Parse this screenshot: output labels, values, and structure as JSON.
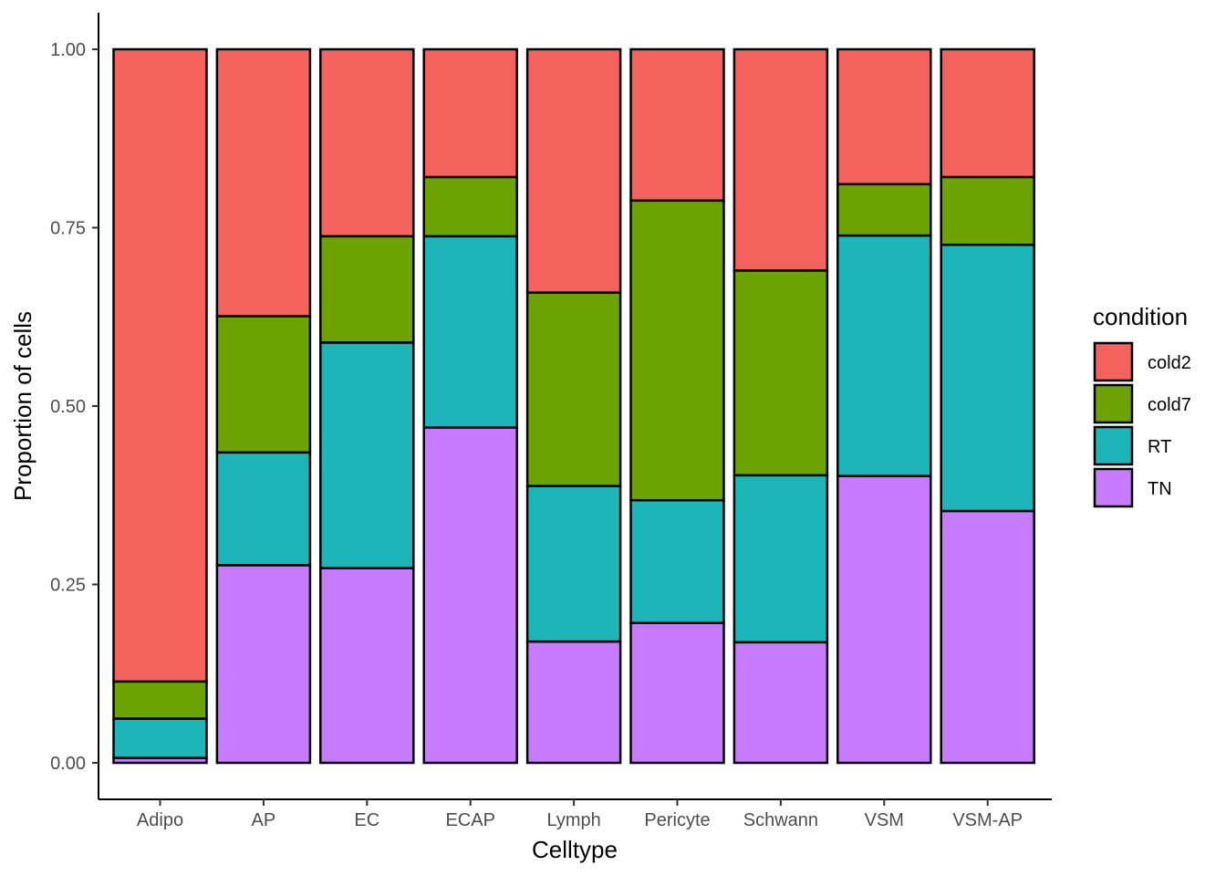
{
  "chart_data": {
    "type": "bar",
    "stacked": true,
    "xlabel": "Celltype",
    "ylabel": "Proportion of cells",
    "ylim": [
      0,
      1
    ],
    "yticks": [
      "0.00",
      "0.25",
      "0.50",
      "0.75",
      "1.00"
    ],
    "categories": [
      "Adipo",
      "AP",
      "EC",
      "ECAP",
      "Lymph",
      "Pericyte",
      "Schwann",
      "VSM",
      "VSM-AP"
    ],
    "series": [
      {
        "name": "TN",
        "color": "#C77CFF",
        "values": [
          0.007,
          0.277,
          0.273,
          0.47,
          0.17,
          0.196,
          0.169,
          0.402,
          0.353
        ]
      },
      {
        "name": "RT",
        "color": "#1DB6B8",
        "values": [
          0.055,
          0.158,
          0.316,
          0.268,
          0.218,
          0.172,
          0.234,
          0.337,
          0.373
        ]
      },
      {
        "name": "cold7",
        "color": "#6DA300",
        "values": [
          0.052,
          0.191,
          0.149,
          0.083,
          0.271,
          0.42,
          0.287,
          0.072,
          0.095
        ]
      },
      {
        "name": "cold2",
        "color": "#F3625D",
        "values": [
          0.886,
          0.374,
          0.262,
          0.179,
          0.341,
          0.212,
          0.31,
          0.189,
          0.179
        ]
      }
    ],
    "legend": {
      "title": "condition",
      "position": "right",
      "entries": [
        "cold2",
        "cold7",
        "RT",
        "TN"
      ]
    },
    "grid": false
  }
}
